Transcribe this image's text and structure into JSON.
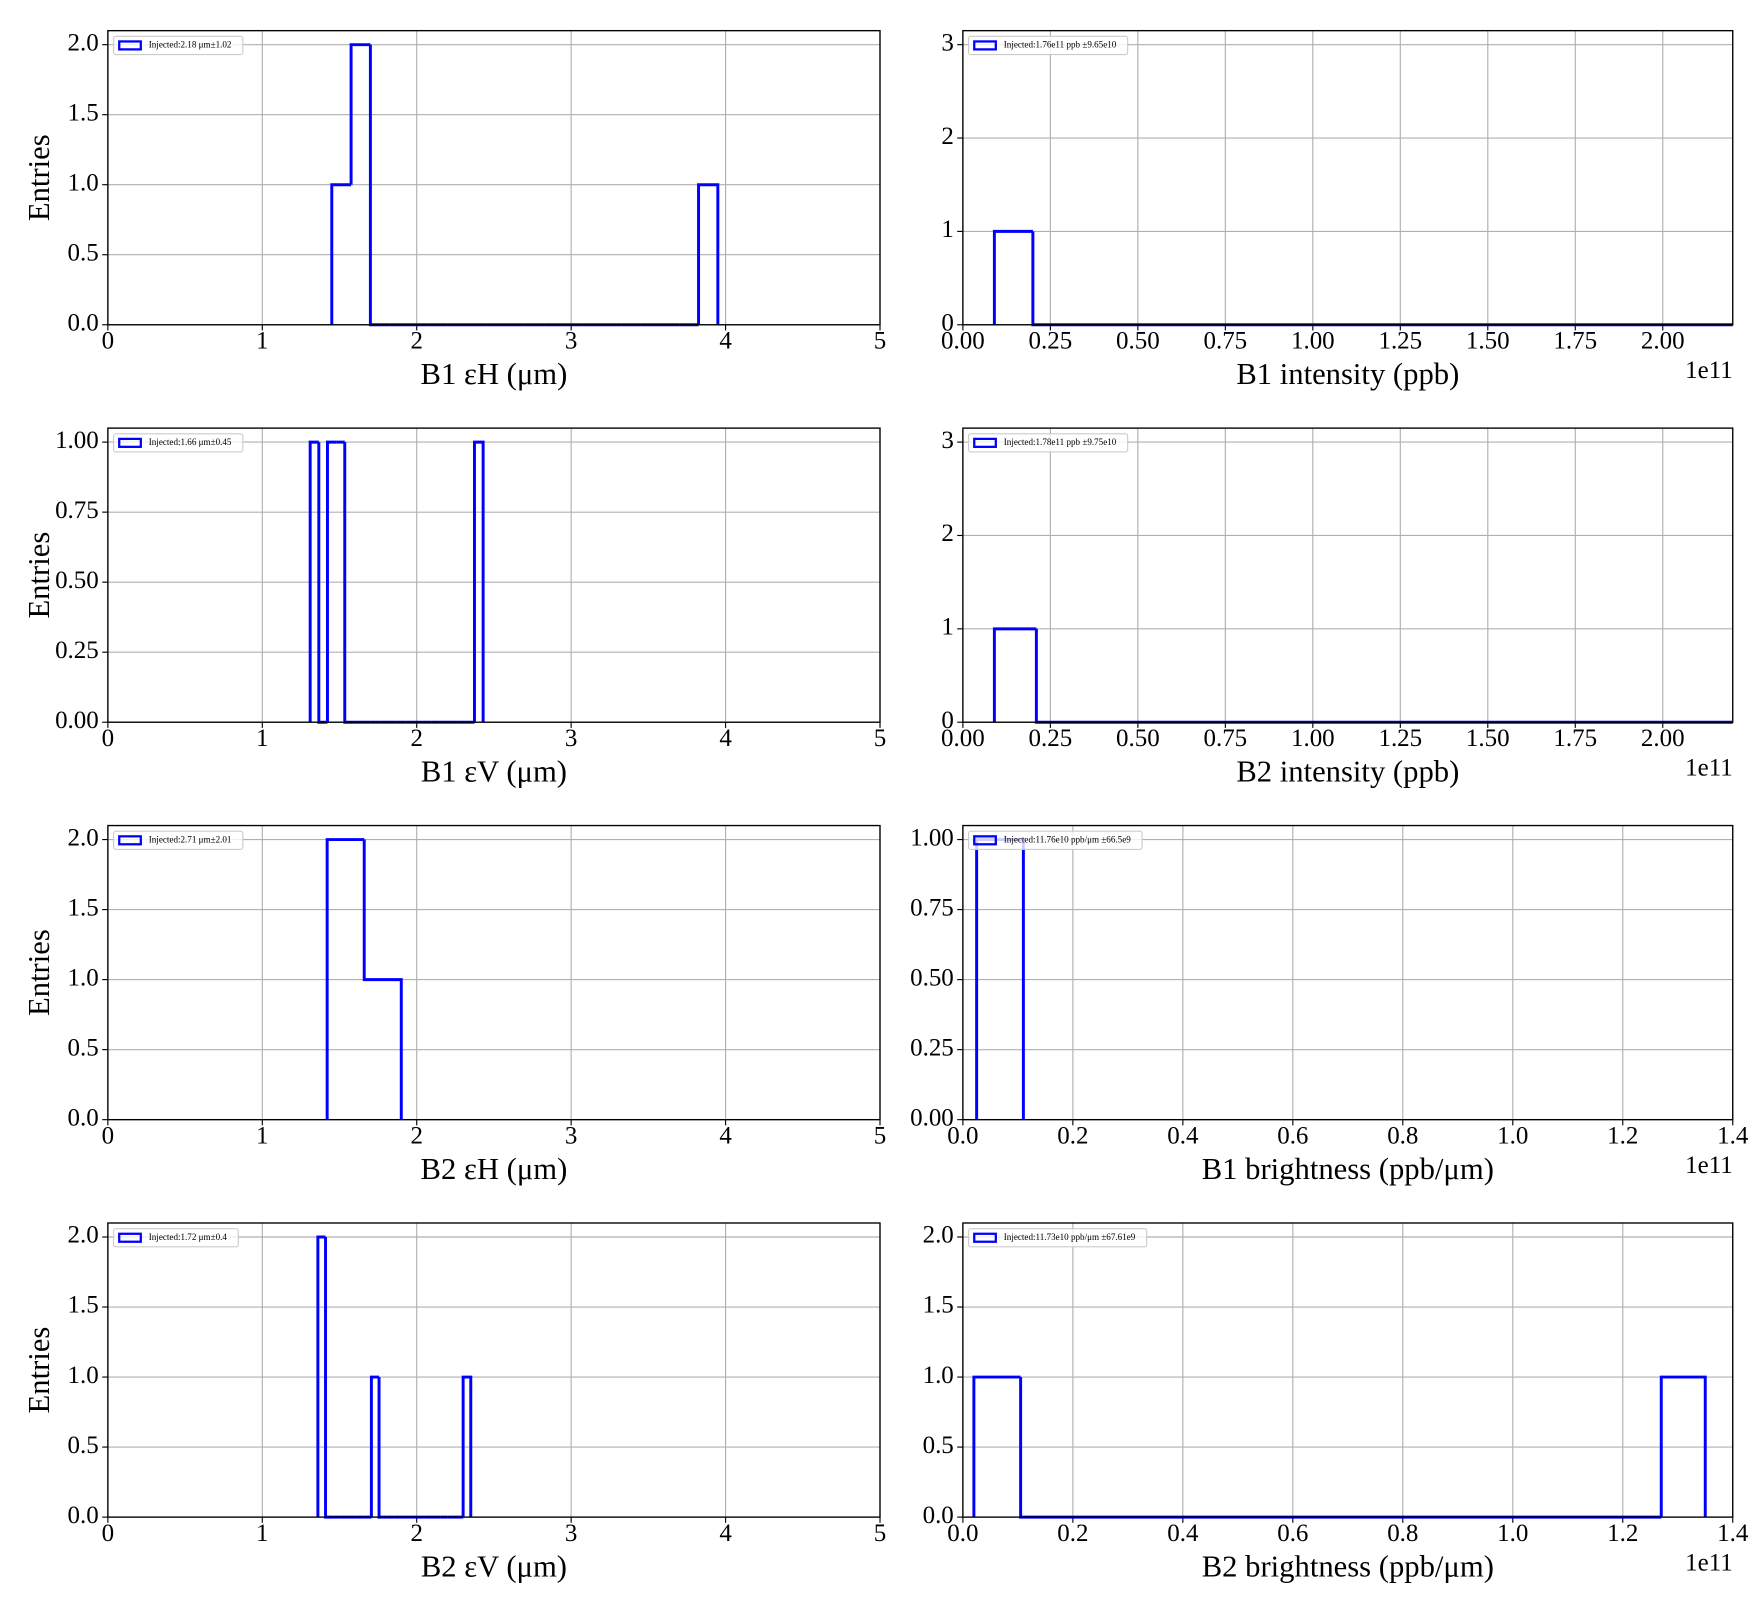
{
  "chart_data": [
    {
      "type": "histogram",
      "xlabel": "B1 εH (μm)",
      "ylabel": "Entries",
      "bins": [
        1.45,
        1.575,
        1.7,
        1.825,
        1.95,
        2.075,
        2.2,
        2.325,
        2.45,
        2.575,
        2.7,
        2.825,
        2.95,
        3.075,
        3.2,
        3.325,
        3.45,
        3.575,
        3.7,
        3.825,
        3.95
      ],
      "series": [
        {
          "name": "Injected:2.18 μm±1.02",
          "color": "#0000ff",
          "values": [
            1,
            2,
            0,
            0,
            0,
            0,
            0,
            0,
            0,
            0,
            0,
            0,
            0,
            0,
            0,
            0,
            0,
            0,
            0,
            1
          ]
        }
      ],
      "xlim": [
        0,
        5
      ],
      "xticks": [
        0,
        1,
        2,
        3,
        4,
        5
      ],
      "ylim": [
        0,
        2.1
      ],
      "yticks": [
        {
          "value": 0,
          "label": "0.0"
        },
        0.5,
        {
          "value": 1,
          "label": "1.0"
        },
        1.5,
        {
          "value": 2,
          "label": "2.0"
        }
      ],
      "grid": true
    },
    {
      "type": "histogram",
      "xlabel": "B1 intensity (ppb)",
      "offset_text": "1e11",
      "bins": [
        9000000000.0,
        20000000000.0,
        220000000000.0
      ],
      "series": [
        {
          "name": "Injected:1.76e11 ppb ±9.65e10",
          "color": "#0000ff",
          "values": [
            1,
            0
          ]
        }
      ],
      "xlim": [
        0,
        220000000000.0
      ],
      "xticks": [
        {
          "value": 0,
          "label": "0.00"
        },
        {
          "value": 25000000000.0,
          "label": "0.25"
        },
        {
          "value": 50000000000.0,
          "label": "0.50"
        },
        {
          "value": 75000000000.0,
          "label": "0.75"
        },
        {
          "value": 100000000000.0,
          "label": "1.00"
        },
        {
          "value": 125000000000.0,
          "label": "1.25"
        },
        {
          "value": 150000000000.0,
          "label": "1.50"
        },
        {
          "value": 175000000000.0,
          "label": "1.75"
        },
        {
          "value": 200000000000.0,
          "label": "2.00"
        }
      ],
      "ylim": [
        0,
        3.15
      ],
      "yticks": [
        0,
        1,
        2,
        3
      ],
      "grid": true
    },
    {
      "type": "histogram",
      "xlabel": "B1 εV (μm)",
      "ylabel": "Entries",
      "bins": [
        1.31,
        1.366,
        1.422,
        1.478,
        1.534,
        1.59,
        1.646,
        1.702,
        1.758,
        1.814,
        1.87,
        1.926,
        1.982,
        2.038,
        2.094,
        2.15,
        2.206,
        2.262,
        2.318,
        2.374,
        2.43
      ],
      "series": [
        {
          "name": "Injected:1.66 μm±0.45",
          "color": "#0000ff",
          "values": [
            1,
            0,
            1,
            1,
            0,
            0,
            0,
            0,
            0,
            0,
            0,
            0,
            0,
            0,
            0,
            0,
            0,
            0,
            0,
            1
          ]
        }
      ],
      "xlim": [
        0,
        5
      ],
      "xticks": [
        0,
        1,
        2,
        3,
        4,
        5
      ],
      "ylim": [
        0,
        1.05
      ],
      "yticks": [
        {
          "value": 0,
          "label": "0.00"
        },
        0.25,
        {
          "value": 0.5,
          "label": "0.50"
        },
        0.75,
        {
          "value": 1,
          "label": "1.00"
        }
      ],
      "grid": true
    },
    {
      "type": "histogram",
      "xlabel": "B2 intensity (ppb)",
      "offset_text": "1e11",
      "bins": [
        9000000000.0,
        21000000000.0,
        220000000000.0
      ],
      "series": [
        {
          "name": "Injected:1.78e11 ppb ±9.75e10",
          "color": "#0000ff",
          "values": [
            1,
            0
          ]
        }
      ],
      "xlim": [
        0,
        220000000000.0
      ],
      "xticks": [
        {
          "value": 0,
          "label": "0.00"
        },
        {
          "value": 25000000000.0,
          "label": "0.25"
        },
        {
          "value": 50000000000.0,
          "label": "0.50"
        },
        {
          "value": 75000000000.0,
          "label": "0.75"
        },
        {
          "value": 100000000000.0,
          "label": "1.00"
        },
        {
          "value": 125000000000.0,
          "label": "1.25"
        },
        {
          "value": 150000000000.0,
          "label": "1.50"
        },
        {
          "value": 175000000000.0,
          "label": "1.75"
        },
        {
          "value": 200000000000.0,
          "label": "2.00"
        }
      ],
      "ylim": [
        0,
        3.15
      ],
      "yticks": [
        0,
        1,
        2,
        3
      ],
      "grid": true
    },
    {
      "type": "histogram",
      "xlabel": "B2 εH (μm)",
      "ylabel": "Entries",
      "bins": [
        1.42,
        1.66,
        1.9
      ],
      "series": [
        {
          "name": "Injected:2.71 μm±2.01",
          "color": "#0000ff",
          "values": [
            2,
            1
          ]
        }
      ],
      "xlim": [
        0,
        5
      ],
      "xticks": [
        0,
        1,
        2,
        3,
        4,
        5
      ],
      "ylim": [
        0,
        2.1
      ],
      "yticks": [
        {
          "value": 0,
          "label": "0.0"
        },
        0.5,
        {
          "value": 1,
          "label": "1.0"
        },
        1.5,
        {
          "value": 2,
          "label": "2.0"
        }
      ],
      "grid": true
    },
    {
      "type": "histogram",
      "xlabel": "B1 brightness (ppb/μm)",
      "offset_text": "1e11",
      "bins": [
        2500000000.0,
        11000000000.0
      ],
      "series": [
        {
          "name": "Injected:11.76e10 ppb/μm ±66.5e9",
          "color": "#0000ff",
          "values": [
            1
          ]
        }
      ],
      "xlim": [
        0,
        140000000000.0
      ],
      "xticks": [
        {
          "value": 0,
          "label": "0.0"
        },
        {
          "value": 20000000000.0,
          "label": "0.2"
        },
        {
          "value": 40000000000.0,
          "label": "0.4"
        },
        {
          "value": 60000000000.0,
          "label": "0.6"
        },
        {
          "value": 80000000000.0,
          "label": "0.8"
        },
        {
          "value": 100000000000.0,
          "label": "1.0"
        },
        {
          "value": 120000000000.0,
          "label": "1.2"
        },
        {
          "value": 140000000000.0,
          "label": "1.4"
        }
      ],
      "ylim": [
        0,
        1.05
      ],
      "yticks": [
        {
          "value": 0,
          "label": "0.00"
        },
        0.25,
        {
          "value": 0.5,
          "label": "0.50"
        },
        0.75,
        {
          "value": 1,
          "label": "1.00"
        }
      ],
      "grid": true
    },
    {
      "type": "histogram",
      "xlabel": "B2 εV (μm)",
      "ylabel": "Entries",
      "bins": [
        1.36,
        1.4095,
        1.459,
        1.5085,
        1.558,
        1.6075,
        1.657,
        1.7065,
        1.756,
        1.8055,
        1.855,
        1.9045,
        1.954,
        2.0035,
        2.053,
        2.1025,
        2.152,
        2.2015,
        2.251,
        2.3005,
        2.35
      ],
      "series": [
        {
          "name": "Injected:1.72 μm±0.4",
          "color": "#0000ff",
          "values": [
            2,
            0,
            0,
            0,
            0,
            0,
            0,
            1,
            0,
            0,
            0,
            0,
            0,
            0,
            0,
            0,
            0,
            0,
            0,
            1
          ]
        }
      ],
      "xlim": [
        0,
        5
      ],
      "xticks": [
        0,
        1,
        2,
        3,
        4,
        5
      ],
      "ylim": [
        0,
        2.1
      ],
      "yticks": [
        {
          "value": 0,
          "label": "0.0"
        },
        0.5,
        {
          "value": 1,
          "label": "1.0"
        },
        1.5,
        {
          "value": 2,
          "label": "2.0"
        }
      ],
      "grid": true
    },
    {
      "type": "histogram",
      "xlabel": "B2 brightness (ppb/μm)",
      "offset_text": "1e11",
      "bins": [
        2000000000.0,
        10500000000.0,
        127000000000.0,
        135000000000.0
      ],
      "series": [
        {
          "name": "Injected:11.73e10 ppb/μm ±67.61e9",
          "color": "#0000ff",
          "values": [
            1,
            0,
            1
          ]
        }
      ],
      "xlim": [
        0,
        140000000000.0
      ],
      "xticks": [
        {
          "value": 0,
          "label": "0.0"
        },
        {
          "value": 20000000000.0,
          "label": "0.2"
        },
        {
          "value": 40000000000.0,
          "label": "0.4"
        },
        {
          "value": 60000000000.0,
          "label": "0.6"
        },
        {
          "value": 80000000000.0,
          "label": "0.8"
        },
        {
          "value": 100000000000.0,
          "label": "1.0"
        },
        {
          "value": 120000000000.0,
          "label": "1.2"
        },
        {
          "value": 140000000000.0,
          "label": "1.4"
        }
      ],
      "ylim": [
        0,
        2.1
      ],
      "yticks": [
        {
          "value": 0,
          "label": "0.0"
        },
        0.5,
        {
          "value": 1,
          "label": "1.0"
        },
        1.5,
        {
          "value": 2,
          "label": "2.0"
        }
      ],
      "grid": true
    }
  ]
}
